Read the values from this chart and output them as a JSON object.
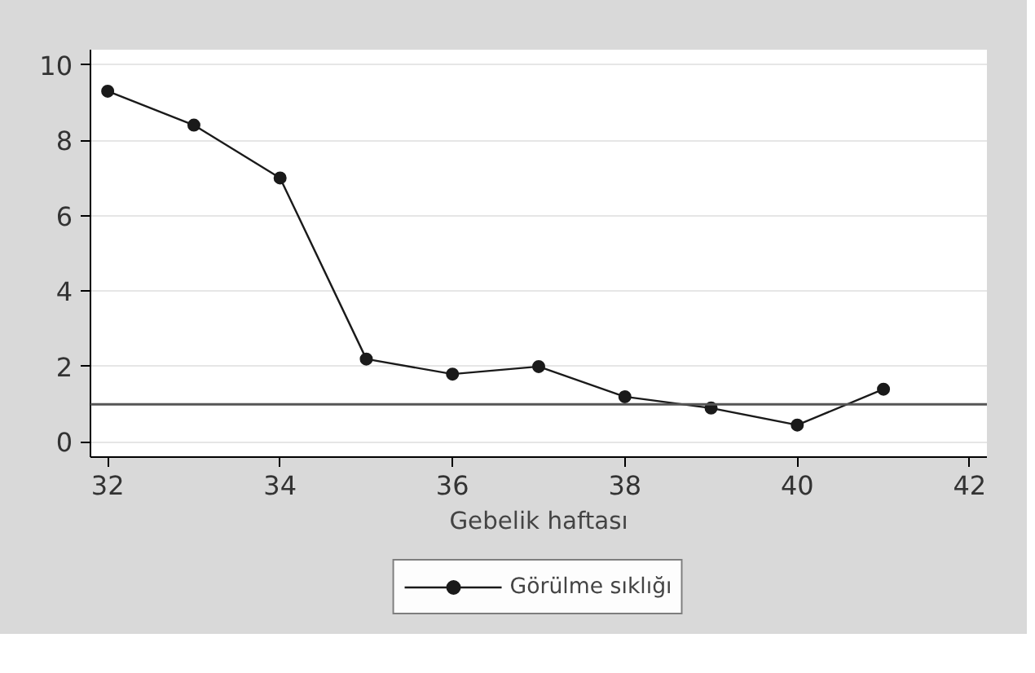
{
  "chart_data": {
    "type": "line",
    "xlabel": "Gebelik haftası",
    "x": [
      32,
      33,
      34,
      35,
      36,
      37,
      38,
      39,
      40,
      41
    ],
    "series": [
      {
        "name": "Görülme sıklığı",
        "color": "#1a1a1a",
        "values": [
          9.3,
          8.4,
          7.0,
          2.2,
          1.8,
          2.0,
          1.2,
          0.9,
          0.45,
          1.4
        ]
      }
    ],
    "xlim": [
      31.8,
      42.2
    ],
    "ylim": [
      -0.4,
      10.4
    ],
    "xticks": [
      32,
      34,
      36,
      38,
      40,
      42
    ],
    "yticks": [
      0,
      2,
      4,
      6,
      8,
      10
    ],
    "ref_lines": [
      {
        "axis": "y",
        "value": 1,
        "color": "#555555"
      }
    ],
    "grid": "y",
    "legend": "bottom",
    "marker": "circle",
    "line_style": "solid"
  }
}
